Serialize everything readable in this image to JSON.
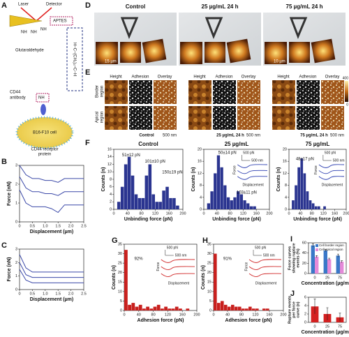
{
  "figure": {
    "A": {
      "label": "A",
      "laser": "Laser",
      "detector": "Detector",
      "aptes": "APTES",
      "nh": [
        "NH",
        "NH",
        "NH",
        "NH"
      ],
      "glutaraldehyde": "Glutaraldehyde",
      "formula": "H–C–(CH₂)₃–C–H",
      "cd44_antibody": [
        "CD44",
        "antibody"
      ],
      "cell": "B16-F10 cell",
      "receptor": [
        "CD44 receptor",
        "protein"
      ]
    },
    "D": {
      "label": "D",
      "titles": [
        "Control",
        "25 µg/mL 24 h",
        "75 µg/mL 24 h"
      ],
      "scale_bar_control": "15 µm",
      "scale_bar_75": "10 µm"
    },
    "E": {
      "label": "E",
      "columns": [
        "Height",
        "Adhesion",
        "Overlay"
      ],
      "rows": [
        [
          "Border",
          "region"
        ],
        [
          "Apical",
          "region"
        ]
      ],
      "groups": [
        "Control",
        "25 µg/mL 24 h",
        "75 µg/mL 24 h"
      ],
      "scale": "500 nm",
      "colorbar_top": "400",
      "colorbar_bottom": "0"
    }
  },
  "chart_data": [
    {
      "type": "line",
      "panel": "B",
      "xlabel": "Displacement (µm)",
      "ylabel": "Force (nN)",
      "xlim": [
        0,
        2.5
      ],
      "ylim": [
        0,
        3
      ],
      "xticks": [
        0,
        0.5,
        {
          "value": 1,
          "label": "1.0"
        },
        1.5,
        {
          "value": 2,
          "label": "2.0"
        },
        2.5
      ],
      "yticks": [
        0,
        1,
        2,
        3
      ],
      "x": [
        0,
        0.25,
        0.5,
        0.75,
        1,
        1.25,
        1.5,
        1.75,
        2,
        2.25,
        2.5
      ],
      "series": [
        {
          "color": "#3a48a8",
          "values": [
            3.0,
            2.5,
            2.3,
            2.3,
            2.2,
            2.2,
            2.1,
            2.3,
            2.3,
            2.3,
            2.3
          ]
        },
        {
          "color": "#3a48a8",
          "values": [
            2.4,
            1.8,
            1.6,
            1.6,
            1.5,
            1.5,
            1.4,
            1.6,
            1.6,
            1.6,
            1.6
          ]
        },
        {
          "color": "#3a48a8",
          "values": [
            1.7,
            1.0,
            0.8,
            0.8,
            0.8,
            0.7,
            0.5,
            0.9,
            0.9,
            0.9,
            0.9
          ]
        }
      ]
    },
    {
      "type": "line",
      "panel": "C",
      "xlabel": "Displacement (µm)",
      "ylabel": "Force (nN)",
      "xlim": [
        0,
        2.5
      ],
      "ylim": [
        0,
        3
      ],
      "xticks": [
        0,
        0.5,
        {
          "value": 1,
          "label": "1.0"
        },
        1.5,
        {
          "value": 2,
          "label": "2.0"
        },
        2.5
      ],
      "yticks": [
        0,
        1,
        2,
        3
      ],
      "x": [
        0,
        0.25,
        0.5,
        0.75,
        1,
        1.25,
        1.5,
        1.75,
        2,
        2.25,
        2.5
      ],
      "series": [
        {
          "color": "#3a48a8",
          "values": [
            2.6,
            1.6,
            1.3,
            1.3,
            1.3,
            1.3,
            1.3,
            1.3,
            1.3,
            1.3,
            1.3
          ]
        },
        {
          "color": "#3a48a8",
          "values": [
            2.0,
            1.1,
            0.9,
            0.9,
            0.9,
            0.9,
            0.9,
            0.9,
            0.9,
            0.9,
            0.9
          ]
        },
        {
          "color": "#3a48a8",
          "values": [
            1.5,
            0.7,
            0.5,
            0.5,
            0.5,
            0.5,
            0.5,
            0.5,
            0.5,
            0.5,
            0.5
          ]
        }
      ]
    },
    {
      "type": "histogram",
      "panel": "F",
      "title": "Control",
      "xlabel": "Unbinding force (pN)",
      "ylabel": "Counts (n)",
      "color": "#2b3590",
      "xlim": [
        0,
        200
      ],
      "ylim": [
        0,
        16
      ],
      "xticks": [
        0,
        40,
        80,
        120,
        160,
        200
      ],
      "yticks": [
        0,
        2,
        4,
        6,
        8,
        10,
        12,
        14,
        16
      ],
      "bins": [
        0,
        10,
        20,
        30,
        40,
        50,
        60,
        70,
        80,
        90,
        100,
        110,
        120,
        130,
        140,
        150,
        160,
        170,
        180,
        190,
        200
      ],
      "counts": [
        0,
        2,
        6,
        12,
        14,
        9,
        4,
        3,
        3,
        9,
        12,
        4,
        2,
        2,
        5,
        6,
        3,
        3,
        1,
        0
      ],
      "annotations": [
        "51±12 pN",
        "101±10 pN",
        "150±19 pN"
      ]
    },
    {
      "type": "histogram",
      "title": "25 µg/mL",
      "xlabel": "Unbinding force (pN)",
      "ylabel": "Counts (n)",
      "color": "#2b3590",
      "xlim": [
        0,
        200
      ],
      "ylim": [
        0,
        20
      ],
      "xticks": [
        0,
        40,
        80,
        120,
        160,
        200
      ],
      "yticks": [
        0,
        4,
        8,
        12,
        16,
        20
      ],
      "bins": [
        0,
        10,
        20,
        30,
        40,
        50,
        60,
        70,
        80,
        90,
        100,
        110,
        120,
        130,
        140,
        150,
        160,
        170,
        180,
        190,
        200
      ],
      "counts": [
        0,
        2,
        6,
        12,
        18,
        14,
        8,
        4,
        3,
        4,
        6,
        5,
        3,
        2,
        1,
        1,
        0,
        0,
        0,
        0
      ],
      "annotations": [
        "50±14 pN",
        "103±11 pN"
      ],
      "inset": [
        "500 pN",
        "500 nm",
        "Force",
        "Displacement"
      ]
    },
    {
      "type": "histogram",
      "title": "75 µg/mL",
      "xlabel": "Unbinding force (pN)",
      "ylabel": "Counts (n)",
      "color": "#2b3590",
      "xlim": [
        0,
        200
      ],
      "ylim": [
        0,
        20
      ],
      "xticks": [
        0,
        40,
        80,
        120,
        160,
        200
      ],
      "yticks": [
        0,
        4,
        8,
        12,
        16,
        20
      ],
      "bins": [
        0,
        10,
        20,
        30,
        40,
        50,
        60,
        70,
        80,
        90,
        100,
        110,
        120,
        130,
        140,
        150,
        160,
        170,
        180,
        190,
        200
      ],
      "counts": [
        0,
        3,
        8,
        14,
        17,
        12,
        6,
        3,
        2,
        1,
        1,
        0,
        1,
        0,
        0,
        0,
        0,
        0,
        0,
        0
      ],
      "annotations": [
        "48±17 pN"
      ],
      "inset": [
        "500 pN",
        "500 nm",
        "Force",
        "Displacement"
      ]
    },
    {
      "type": "histogram",
      "panel": "G",
      "xlabel": "Adhesion force (pN)",
      "ylabel": "Counts (n)",
      "color": "#c8201e",
      "xlim": [
        0,
        200
      ],
      "ylim": [
        0,
        35
      ],
      "xticks": [
        0,
        40,
        80,
        120,
        160,
        200
      ],
      "yticks": [
        0,
        5,
        10,
        15,
        20,
        25,
        30,
        35
      ],
      "bins": [
        0,
        10,
        20,
        30,
        40,
        50,
        60,
        70,
        80,
        90,
        100,
        110,
        120,
        130,
        140,
        150,
        160,
        170,
        180,
        190,
        200
      ],
      "counts": [
        32,
        3,
        4,
        2,
        3,
        1,
        2,
        1,
        2,
        3,
        1,
        2,
        1,
        1,
        2,
        1,
        0,
        1,
        0,
        0
      ],
      "annotations": [
        "92%"
      ],
      "inset": [
        "500 pN",
        "500 nm",
        "Force",
        "Displacement"
      ]
    },
    {
      "type": "histogram",
      "panel": "H",
      "xlabel": "Adhesion force (pN)",
      "ylabel": "Counts (n)",
      "color": "#c8201e",
      "xlim": [
        0,
        200
      ],
      "ylim": [
        0,
        35
      ],
      "xticks": [
        0,
        40,
        80,
        120,
        160,
        200
      ],
      "yticks": [
        0,
        5,
        10,
        15,
        20,
        25,
        30,
        35
      ],
      "bins": [
        0,
        10,
        20,
        30,
        40,
        50,
        60,
        70,
        80,
        90,
        100,
        110,
        120,
        130,
        140,
        150,
        160,
        170,
        180,
        190,
        200
      ],
      "counts": [
        30,
        4,
        5,
        3,
        2,
        3,
        2,
        2,
        1,
        1,
        2,
        1,
        1,
        0,
        1,
        1,
        0,
        0,
        0,
        0
      ],
      "annotations": [
        "91%"
      ],
      "inset": [
        "500 pN",
        "500 nm",
        "Force",
        "Displacement"
      ]
    },
    {
      "type": "bar",
      "panel": "I",
      "xlabel": "Concentration (µg/mL)",
      "ylabel": [
        "Force curves",
        "showing rupture",
        "events (%)"
      ],
      "categories": [
        "0",
        "25",
        "75"
      ],
      "ylim": [
        0,
        60
      ],
      "yticks": [
        0,
        20,
        40,
        60
      ],
      "series": [
        {
          "name": "Cell border region",
          "color": "#3a78c8",
          "values": [
            55,
            45,
            35
          ],
          "errors": [
            3,
            2,
            3
          ]
        },
        {
          "name": "Cell apical region",
          "color": "#e58ad8",
          "values": [
            33,
            28,
            23
          ],
          "errors": [
            2,
            2,
            2
          ]
        }
      ]
    },
    {
      "type": "bar",
      "panel": "J",
      "xlabel": "Concentration (µg/mL)",
      "ylabel": [
        "Rupture events",
        "per force",
        "curve (n)"
      ],
      "categories": [
        "0",
        "25",
        "75"
      ],
      "ylim": [
        0,
        6
      ],
      "yticks": [
        0,
        2,
        4,
        6
      ],
      "series": [
        {
          "color": "#d42020",
          "values": [
            3.8,
            2.0,
            1.2
          ],
          "errors": [
            1.8,
            1.5,
            1.0
          ]
        }
      ]
    }
  ]
}
